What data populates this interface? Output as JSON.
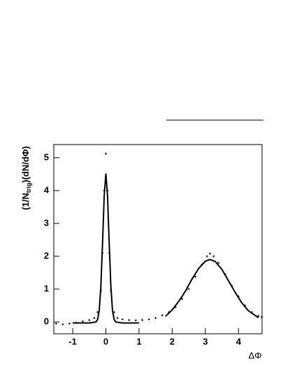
{
  "chart_data": {
    "type": "scatter",
    "xlabel": "ΔΦ",
    "ylabel": {
      "main": "(1/N",
      "sub": "trig",
      "rest": ")(dN/dΦ)"
    },
    "xlim": [
      -1.57,
      4.71
    ],
    "ylim": [
      -0.36,
      5.4
    ],
    "xticks": [
      -1,
      0,
      1,
      2,
      3,
      4
    ],
    "yticks": [
      0,
      1,
      2,
      3,
      4,
      5
    ],
    "series": [
      {
        "type": "line",
        "color": "#000000",
        "x": [
          -1,
          -0.5,
          -0.3,
          -0.25,
          -0.2,
          -0.15,
          -0.1,
          -0.05,
          0,
          0.05,
          0.1,
          0.15,
          0.2,
          0.25,
          0.3,
          0.5,
          1,
          1.5,
          1.8,
          2,
          2.2,
          2.4,
          2.6,
          2.8,
          3,
          3.14,
          3.3,
          3.5,
          3.7,
          3.9,
          4.1,
          4.3,
          4.6
        ],
        "values": [
          -0.03,
          -0.03,
          0.0,
          0.07,
          0.35,
          1.1,
          2.41,
          3.84,
          4.52,
          3.84,
          2.41,
          1.1,
          0.35,
          0.07,
          0.0,
          -0.03,
          -0.03,
          null,
          0.17,
          0.37,
          0.63,
          0.94,
          1.31,
          1.63,
          1.85,
          1.9,
          1.84,
          1.6,
          1.25,
          0.9,
          0.58,
          0.34,
          0.13
        ]
      },
      {
        "type": "scatter",
        "color": "#000000",
        "x": [
          -1.5,
          -1.3,
          -1.1,
          -0.9,
          -0.7,
          -0.5,
          -0.35,
          -0.25,
          -0.15,
          -0.1,
          -0.05,
          0,
          0.05,
          0.1,
          0.15,
          0.25,
          0.35,
          0.5,
          0.7,
          0.9,
          1.1,
          1.3,
          1.5,
          1.7,
          1.9,
          2.1,
          2.3,
          2.5,
          2.7,
          2.9,
          3.05,
          3.14,
          3.25,
          3.4,
          3.6,
          3.8,
          4.0,
          4.2,
          4.4,
          4.6,
          4.7
        ],
        "values": [
          -0.05,
          -0.07,
          -0.05,
          -0.02,
          0.02,
          0.06,
          0.12,
          0.3,
          0.95,
          2.1,
          4.0,
          5.12,
          4.0,
          2.1,
          0.95,
          0.3,
          0.12,
          0.08,
          0.06,
          0.05,
          0.06,
          0.08,
          0.12,
          0.2,
          0.3,
          0.45,
          0.7,
          1.0,
          1.38,
          1.75,
          2.0,
          2.08,
          2.0,
          1.8,
          1.45,
          1.1,
          0.78,
          0.5,
          0.3,
          0.18,
          0.15
        ]
      }
    ]
  }
}
